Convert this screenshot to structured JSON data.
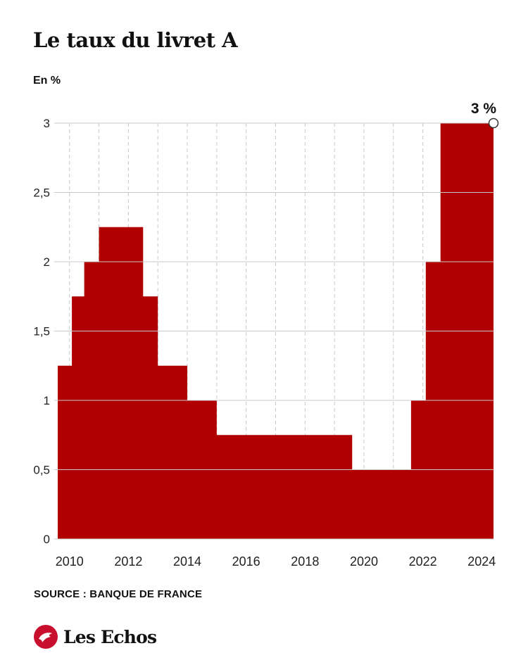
{
  "header": {
    "title": "Le taux du livret A",
    "unit": "En %"
  },
  "footer": {
    "source": "SOURCE : BANQUE DE FRANCE",
    "brand": "Les Echos"
  },
  "colors": {
    "fill": "#b00000",
    "grid": "#c8c8c8",
    "text": "#222222"
  },
  "chart_data": {
    "type": "area",
    "step": true,
    "xlim": [
      2009.6,
      2024.4
    ],
    "ylim": [
      0,
      3
    ],
    "yticks": [
      0,
      0.5,
      1,
      1.5,
      2,
      2.5,
      3
    ],
    "yticklabels": [
      "0",
      "0,5",
      "1",
      "1,5",
      "2",
      "2,5",
      "3"
    ],
    "xticks": [
      2010,
      2012,
      2014,
      2016,
      2018,
      2020,
      2022,
      2024
    ],
    "xticklabels": [
      "2010",
      "2012",
      "2014",
      "2016",
      "2018",
      "2020",
      "2022",
      "2024"
    ],
    "grid": true,
    "series": [
      {
        "values": [
          {
            "x": 2009.6,
            "y": 1.25
          },
          {
            "x": 2010.08,
            "y": 1.75
          },
          {
            "x": 2010.5,
            "y": 2.0
          },
          {
            "x": 2011.0,
            "y": 2.25
          },
          {
            "x": 2012.5,
            "y": 1.75
          },
          {
            "x": 2013.0,
            "y": 1.25
          },
          {
            "x": 2014.0,
            "y": 1.0
          },
          {
            "x": 2015.0,
            "y": 0.75
          },
          {
            "x": 2019.6,
            "y": 0.5
          },
          {
            "x": 2021.6,
            "y": 1.0
          },
          {
            "x": 2022.1,
            "y": 2.0
          },
          {
            "x": 2022.6,
            "y": 3.0
          }
        ]
      }
    ],
    "annotation": {
      "x": 2024.4,
      "y": 3.0,
      "label": "3 %"
    }
  }
}
